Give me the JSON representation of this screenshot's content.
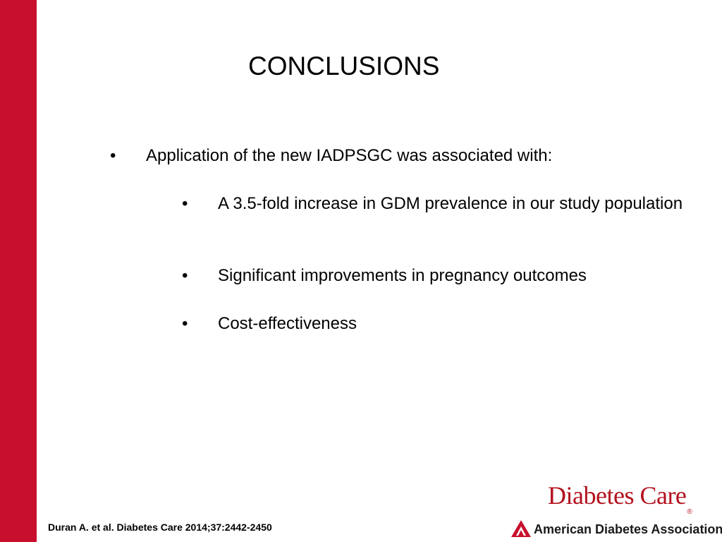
{
  "slide": {
    "title": "CONCLUSIONS",
    "accent_color": "#c8102e",
    "main_bullet": "Application of the new IADPSGC was associated with:",
    "sub_bullets": [
      "A 3.5-fold increase in GDM prevalence in our study population",
      "Significant improvements in pregnancy outcomes",
      "Cost-effectiveness"
    ],
    "bullet_char": "•"
  },
  "footer": {
    "citation": "Duran A. et al. Diabetes Care 2014;37:2442-2450",
    "journal_logo": "Diabetes Care",
    "organization": "American Diabetes Association.",
    "registered_mark": "®",
    "logo_icon": "ada-triangle-icon"
  }
}
